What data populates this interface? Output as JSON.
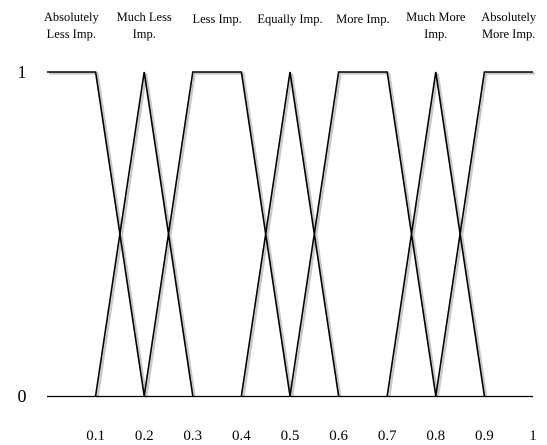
{
  "chart_data": {
    "type": "line",
    "title": "",
    "xlabel": "",
    "ylabel": "",
    "xlim": [
      0,
      1
    ],
    "ylim": [
      0,
      1
    ],
    "grid": false,
    "x_ticks": [
      "0.1",
      "0.2",
      "0.3",
      "0.4",
      "0.5",
      "0.6",
      "0.7",
      "0.8",
      "0.9",
      "1"
    ],
    "y_ticks": [
      "0",
      "1"
    ],
    "series": [
      {
        "name": "Absolutely Less Imp.",
        "label_lines": [
          "Absolutely",
          "Less Imp."
        ],
        "points": [
          [
            0,
            1
          ],
          [
            0.1,
            1
          ],
          [
            0.2,
            0
          ]
        ]
      },
      {
        "name": "Much Less Imp.",
        "label_lines": [
          "Much Less",
          "Imp."
        ],
        "points": [
          [
            0.1,
            0
          ],
          [
            0.2,
            1
          ],
          [
            0.3,
            0
          ]
        ]
      },
      {
        "name": "Less Imp.",
        "label_lines": [
          "Less Imp."
        ],
        "points": [
          [
            0.2,
            0
          ],
          [
            0.3,
            1
          ],
          [
            0.4,
            1
          ],
          [
            0.5,
            0
          ]
        ]
      },
      {
        "name": "Equally Imp.",
        "label_lines": [
          "Equally Imp."
        ],
        "points": [
          [
            0.4,
            0
          ],
          [
            0.5,
            1
          ],
          [
            0.6,
            0
          ]
        ]
      },
      {
        "name": "More Imp.",
        "label_lines": [
          "More Imp."
        ],
        "points": [
          [
            0.5,
            0
          ],
          [
            0.6,
            1
          ],
          [
            0.7,
            1
          ],
          [
            0.8,
            0
          ]
        ]
      },
      {
        "name": "Much More Imp.",
        "label_lines": [
          "Much More",
          "Imp."
        ],
        "points": [
          [
            0.7,
            0
          ],
          [
            0.8,
            1
          ],
          [
            0.9,
            0
          ]
        ]
      },
      {
        "name": "Absolutely More Imp.",
        "label_lines": [
          "Absolutely",
          "More Imp."
        ],
        "points": [
          [
            0.8,
            0
          ],
          [
            0.9,
            1
          ],
          [
            1.0,
            1
          ]
        ]
      }
    ],
    "colors": {
      "line": "#000000",
      "shadow": "#c8c8c8",
      "axis": "#000000"
    }
  }
}
